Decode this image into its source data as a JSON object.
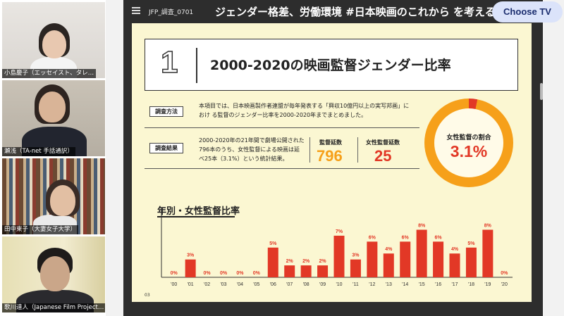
{
  "participants": [
    {
      "name": "小島慶子（エッセイスト、タレ…"
    },
    {
      "name": "瀬浅（TA-net 手話通訳）"
    },
    {
      "name": "田中東子（大妻女子大学）"
    },
    {
      "name": "歌川達人（Japanese Film Project…"
    }
  ],
  "topbar": {
    "file_name": "JFP_調査_0701",
    "banner": "ジェンダー格差、労働環境 #日本映画のこれから を考える",
    "choose_tv": "Choose TV"
  },
  "slide": {
    "number": "1",
    "title": "2000-2020の映画監督ジェンダー比率",
    "method_label": "調査方法",
    "method_text": "本項目では、日本映画製作者連盟が毎年発表する「興収10億円以上の実写邦画」におけ る監督のジェンダー比率を2000-2020年までまとめました。",
    "result_label": "調査結果",
    "result_text": "2000-2020年の21年間で劇場公開された796本のうち、女性監督による映画は延べ25本（3.1%）という統計結果。",
    "directors_label": "監督延数",
    "directors_value": "796",
    "female_label": "女性監督延数",
    "female_value": "25",
    "donut_label": "女性監督の割合",
    "donut_value": "3.1%",
    "page_number": "03"
  },
  "colors": {
    "bar": "#e23826",
    "orange": "#f6a01a",
    "slide_bg": "#fbf7d2"
  },
  "chart_data": {
    "type": "bar",
    "title": "年別・女性監督比率",
    "categories": [
      "'00",
      "'01",
      "'02",
      "'03",
      "'04",
      "'05",
      "'06",
      "'07",
      "'08",
      "'09",
      "'10",
      "'11",
      "'12",
      "'13",
      "'14",
      "'15",
      "'16",
      "'17",
      "'18",
      "'19",
      "'20"
    ],
    "values": [
      0,
      3,
      0,
      0,
      0,
      0,
      5,
      2,
      2,
      2,
      7,
      3,
      6,
      4,
      6,
      8,
      6,
      4,
      5,
      8,
      0
    ],
    "data_labels": [
      "0%",
      "3%",
      "0%",
      "0%",
      "0%",
      "0%",
      "5%",
      "2%",
      "2%",
      "2%",
      "7%",
      "3%",
      "6%",
      "4%",
      "6%",
      "8%",
      "6%",
      "4%",
      "5%",
      "8%",
      "0%"
    ],
    "ylim": [
      0,
      9
    ],
    "grid": false
  }
}
